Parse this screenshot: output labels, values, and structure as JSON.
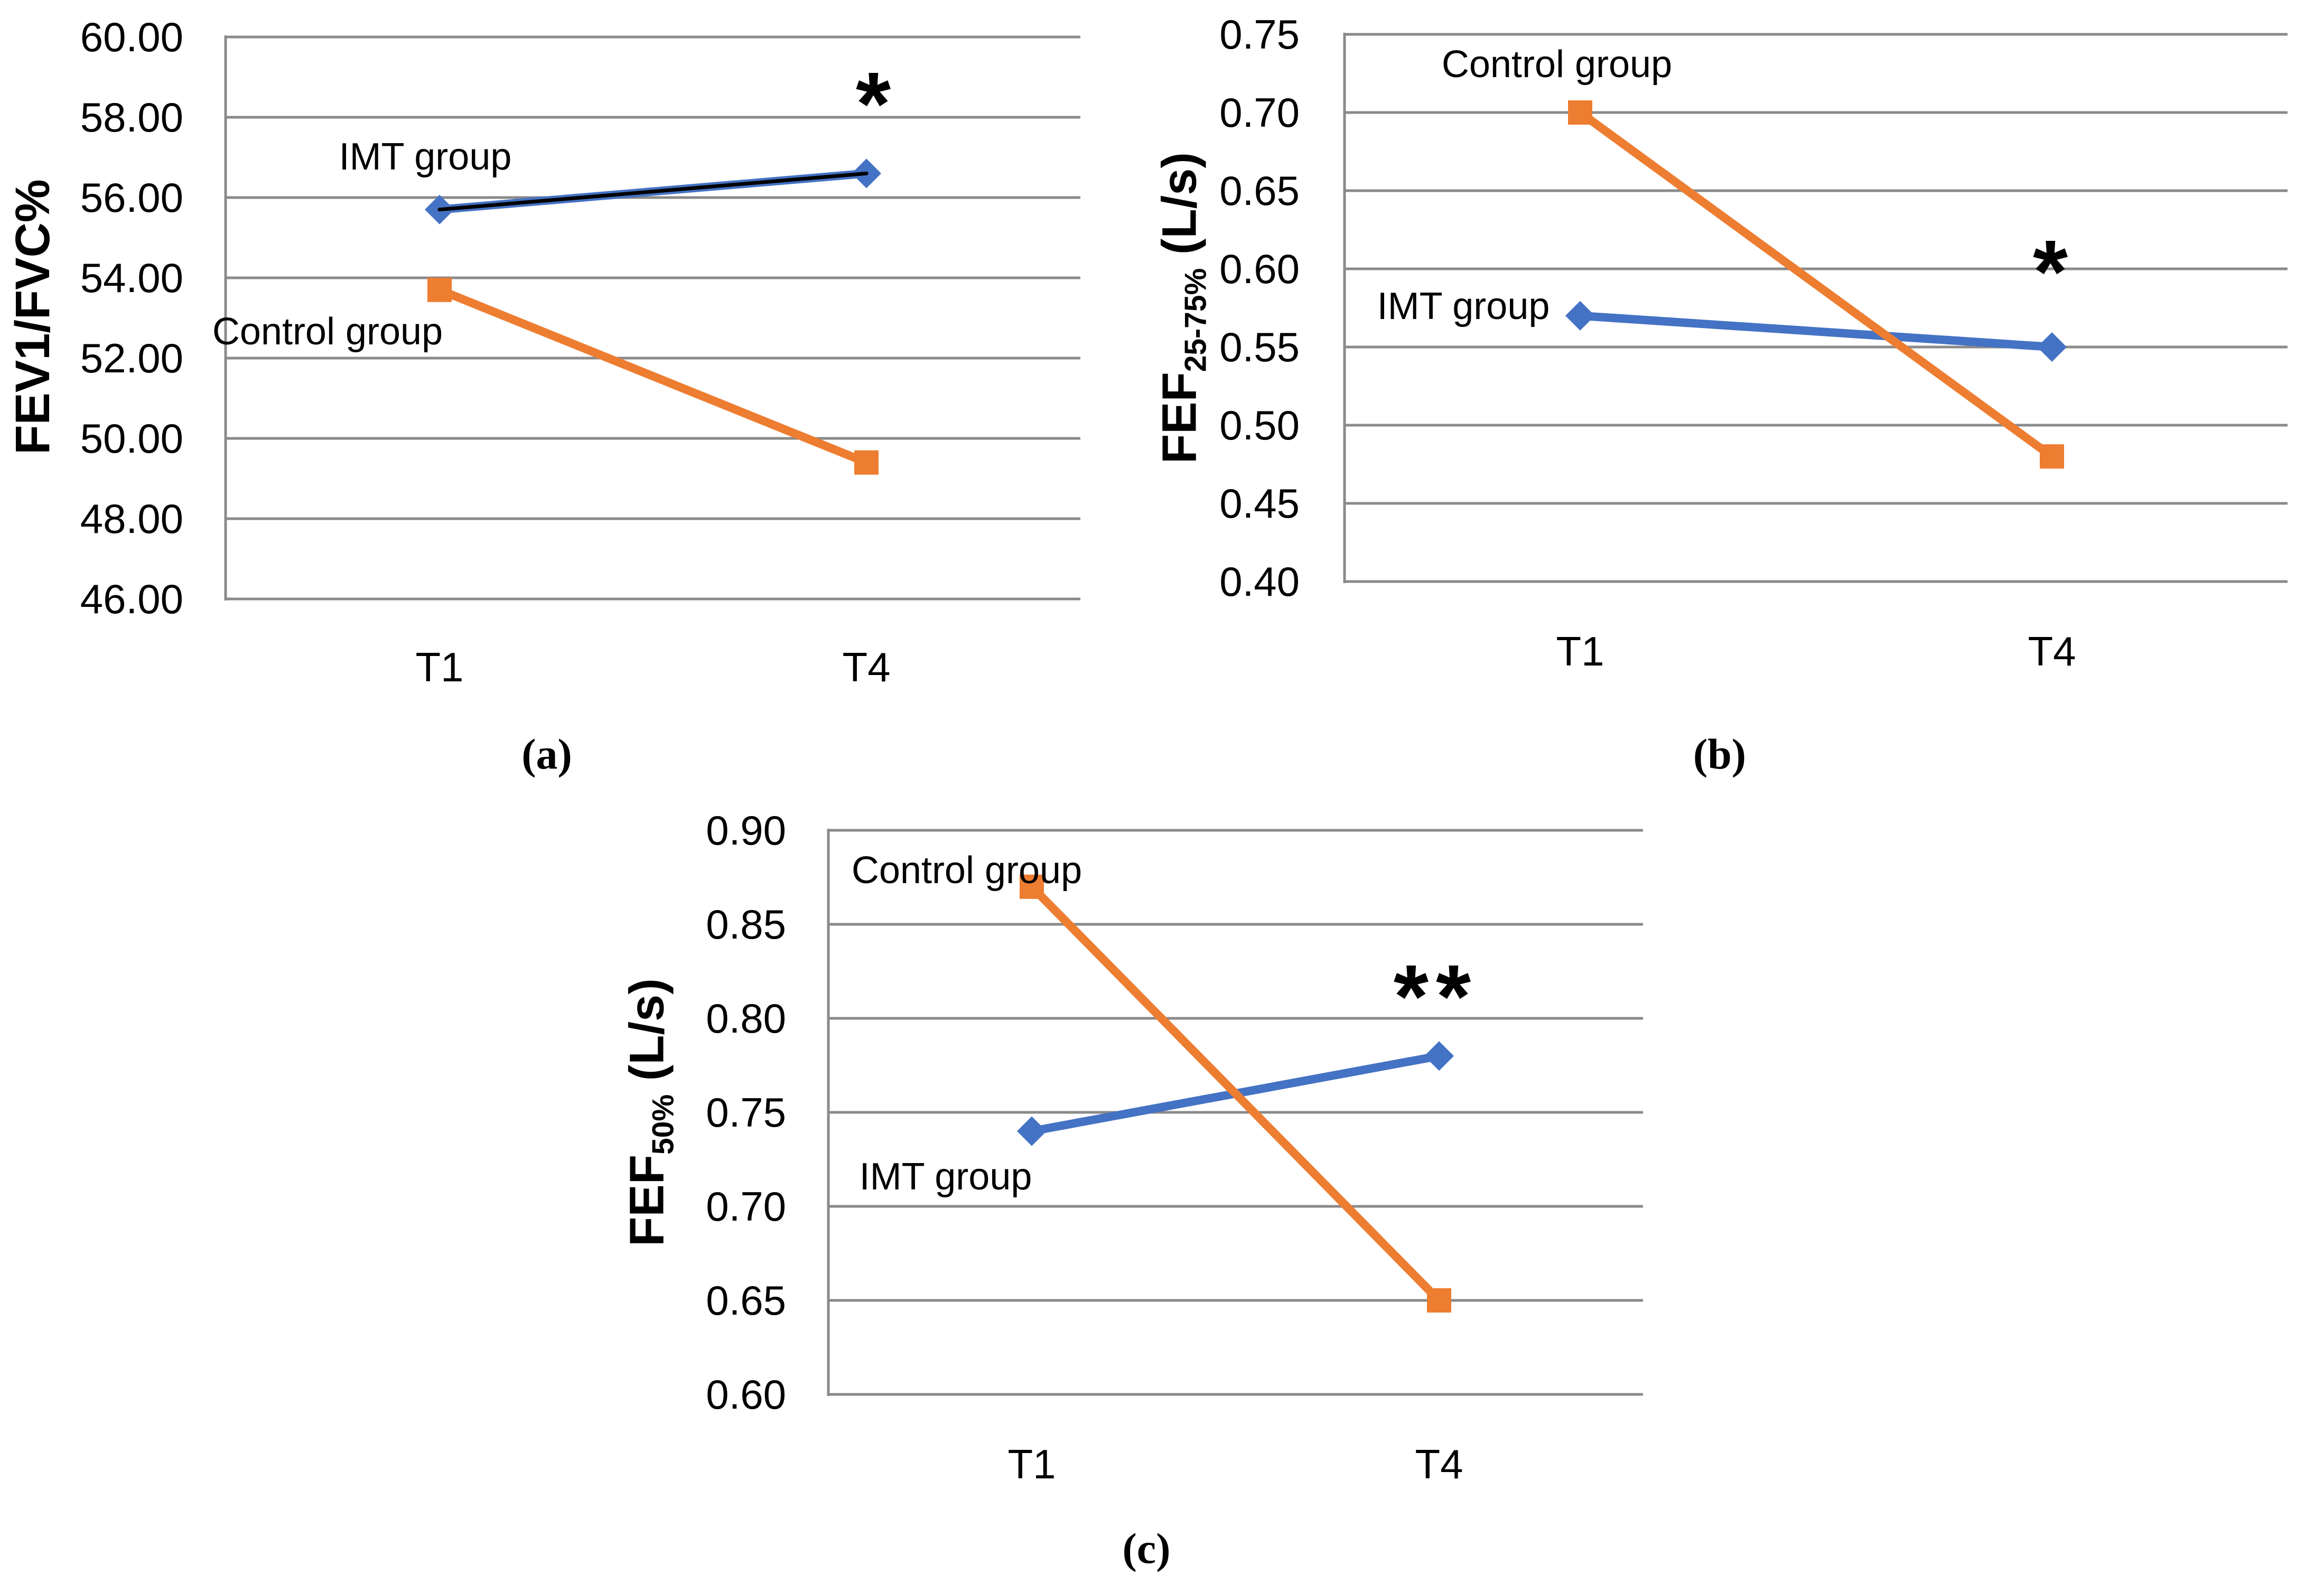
{
  "figure": {
    "background": "#ffffff",
    "description_visible_panels": [
      "(a)",
      "(b)",
      "(c)"
    ]
  },
  "colors": {
    "imt_blue": "#4472C4",
    "control_orange": "#ED7D31",
    "gridline_gray": "#8A8A8A",
    "trend_black": "#000000",
    "text_black": "#000000"
  },
  "chart_data": [
    {
      "type": "line",
      "panel_label": "(a)",
      "categories": [
        "T1",
        "T4"
      ],
      "series": [
        {
          "name": "IMT group",
          "values": [
            55.7,
            56.6
          ],
          "color": "#4472C4",
          "marker": "diamond",
          "overlay_trend_line": true,
          "overlay_trend_color": "#000000"
        },
        {
          "name": "Control group",
          "values": [
            53.7,
            49.4
          ],
          "color": "#ED7D31",
          "marker": "square",
          "overlay_trend_line": false
        }
      ],
      "ylabel_parts": [
        {
          "text": "FEV1/FVC%",
          "subscript": false
        }
      ],
      "ylim": [
        46,
        60
      ],
      "ytick_step": 2,
      "ytick_labels": [
        "60.00",
        "58.00",
        "56.00",
        "54.00",
        "52.00",
        "50.00",
        "48.00",
        "46.00"
      ],
      "grid": "horizontal",
      "legend": "inline-labels",
      "annotations": [
        {
          "text": "*",
          "near_category": "T4",
          "y_value": 58.7,
          "series": "IMT group"
        }
      ]
    },
    {
      "type": "line",
      "panel_label": "(b)",
      "categories": [
        "T1",
        "T4"
      ],
      "series": [
        {
          "name": "IMT group",
          "values": [
            0.57,
            0.55
          ],
          "color": "#4472C4",
          "marker": "diamond",
          "overlay_trend_line": false
        },
        {
          "name": "Control group",
          "values": [
            0.7,
            0.48
          ],
          "color": "#ED7D31",
          "marker": "square",
          "overlay_trend_line": false
        }
      ],
      "ylabel_parts": [
        {
          "text": "FEF",
          "subscript": false
        },
        {
          "text": "25-75%",
          "subscript": true
        },
        {
          "text": " (L/s)",
          "subscript": false
        }
      ],
      "ylim": [
        0.4,
        0.75
      ],
      "ytick_step": 0.05,
      "ytick_labels": [
        "0.75",
        "0.70",
        "0.65",
        "0.60",
        "0.55",
        "0.50",
        "0.45",
        "0.40"
      ],
      "grid": "horizontal",
      "legend": "inline-labels",
      "annotations": [
        {
          "text": "*",
          "near_category": "T4",
          "y_value": 0.61,
          "series": "IMT group"
        }
      ]
    },
    {
      "type": "line",
      "panel_label": "(c)",
      "categories": [
        "T1",
        "T4"
      ],
      "series": [
        {
          "name": "IMT group",
          "values": [
            0.74,
            0.78
          ],
          "color": "#4472C4",
          "marker": "diamond",
          "overlay_trend_line": false
        },
        {
          "name": "Control group",
          "values": [
            0.87,
            0.65
          ],
          "color": "#ED7D31",
          "marker": "square",
          "overlay_trend_line": false
        }
      ],
      "ylabel_parts": [
        {
          "text": "FEF",
          "subscript": false
        },
        {
          "text": "50%",
          "subscript": true
        },
        {
          "text": " (L/s)",
          "subscript": false
        }
      ],
      "ylim": [
        0.6,
        0.9
      ],
      "ytick_step": 0.05,
      "ytick_labels": [
        "0.90",
        "0.85",
        "0.80",
        "0.75",
        "0.70",
        "0.65",
        "0.60"
      ],
      "grid": "horizontal",
      "legend": "inline-labels",
      "annotations": [
        {
          "text": "**",
          "near_category": "T4",
          "y_value": 0.82,
          "series": "IMT group"
        }
      ]
    }
  ]
}
